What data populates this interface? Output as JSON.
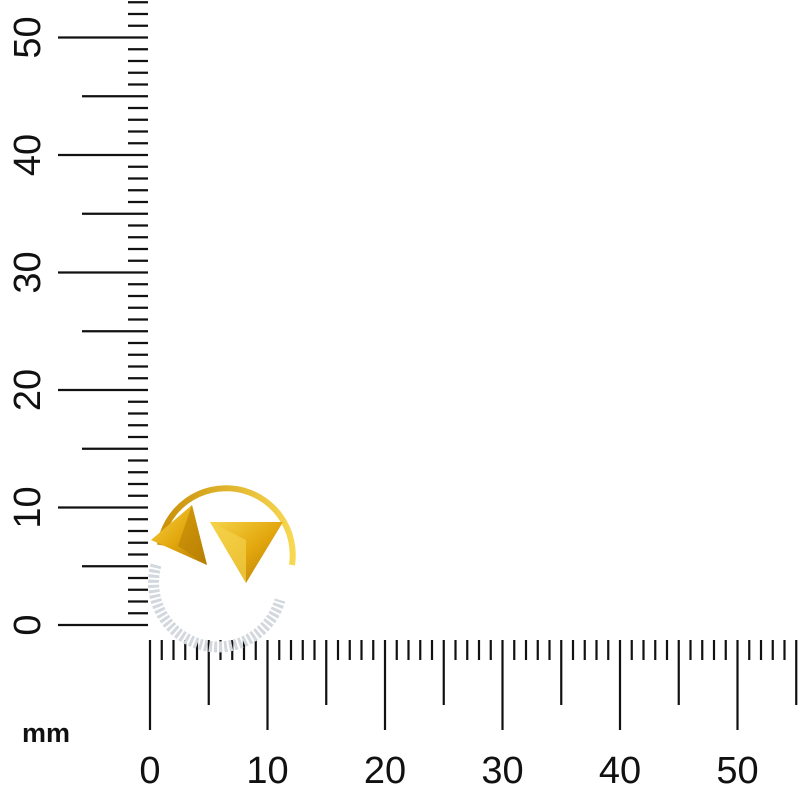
{
  "ruler": {
    "unit": "mm",
    "x_labels": [
      "0",
      "10",
      "20",
      "30",
      "40",
      "50"
    ],
    "y_labels": [
      "0",
      "10",
      "20",
      "30",
      "40",
      "50"
    ],
    "max_mm": 55,
    "color": "#111111"
  },
  "product": {
    "type": "circular pendant with two pyramid accents and pavé stones",
    "gold_color": "#e8b317",
    "stone_color": "#d9dde2"
  }
}
